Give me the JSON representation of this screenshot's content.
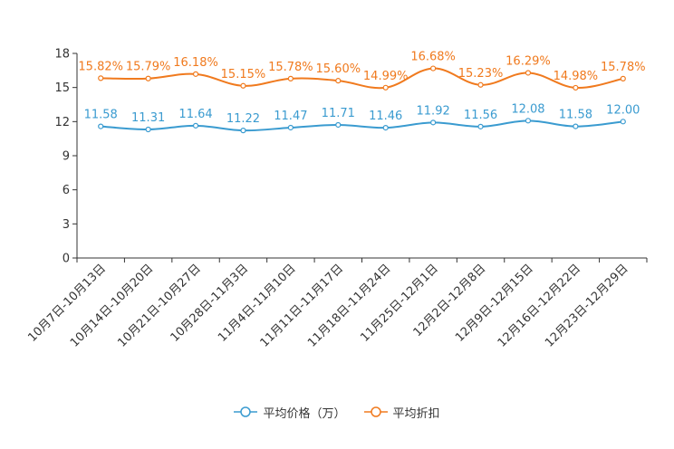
{
  "chart_data": {
    "type": "line",
    "title": "",
    "xlabel": "",
    "ylabel": "",
    "ylim": [
      0,
      18
    ],
    "yticks": [
      0,
      3,
      6,
      9,
      12,
      15,
      18
    ],
    "grid": false,
    "legend_position": "bottom-center",
    "categories": [
      "10月7日-10月13日",
      "10月14日-10月20日",
      "10月21日-10月27日",
      "10月28日-11月3日",
      "11月4日-11月10日",
      "11月11日-11月17日",
      "11月18日-11月24日",
      "11月25日-12月1日",
      "12月2日-12月8日",
      "12月9日-12月15日",
      "12月16日-12月22日",
      "12月23日-12月29日"
    ],
    "series": [
      {
        "name": "平均价格（万）",
        "color": "#3a9bd0",
        "values": [
          11.58,
          11.31,
          11.64,
          11.22,
          11.47,
          11.71,
          11.46,
          11.92,
          11.56,
          12.08,
          11.58,
          12.0
        ],
        "labels": [
          "11.58",
          "11.31",
          "11.64",
          "11.22",
          "11.47",
          "11.71",
          "11.46",
          "11.92",
          "11.56",
          "12.08",
          "11.58",
          "12.00"
        ]
      },
      {
        "name": "平均折扣",
        "color": "#f07a1e",
        "values": [
          15.82,
          15.79,
          16.18,
          15.15,
          15.78,
          15.6,
          14.99,
          16.68,
          15.23,
          16.29,
          14.98,
          15.78
        ],
        "labels": [
          "15.82%",
          "15.79%",
          "16.18%",
          "15.15%",
          "15.78%",
          "15.60%",
          "14.99%",
          "16.68%",
          "15.23%",
          "16.29%",
          "14.98%",
          "15.78%"
        ]
      }
    ]
  }
}
